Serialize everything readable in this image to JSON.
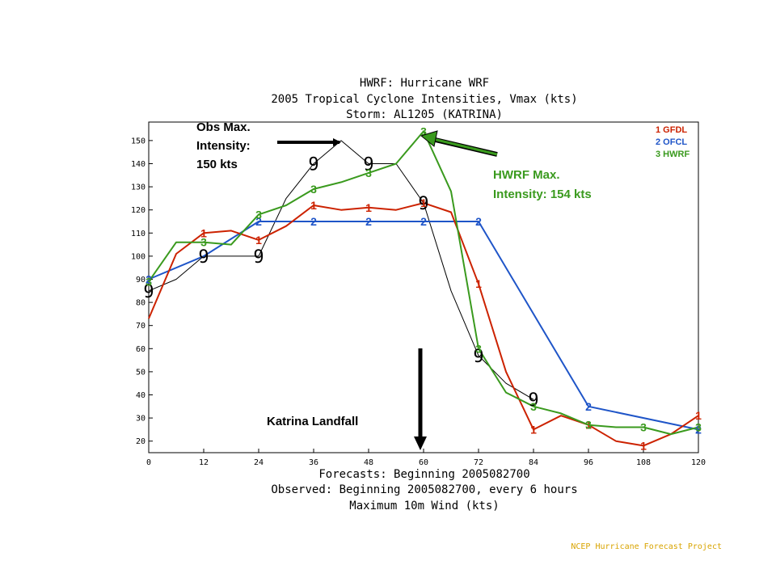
{
  "chart_data": {
    "type": "line",
    "title_lines": [
      "HWRF: Hurricane WRF",
      "2005 Tropical Cyclone Intensities, Vmax (kts)",
      "Storm: AL1205  (KATRINA)"
    ],
    "xlabel_lines": [
      "Forecasts: Beginning 2005082700",
      "Observed: Beginning 2005082700, every 6 hours",
      "Maximum 10m Wind (kts)"
    ],
    "xlim": [
      0,
      120
    ],
    "ylim": [
      15,
      158
    ],
    "x_ticks": [
      0,
      12,
      24,
      36,
      48,
      60,
      72,
      84,
      96,
      108,
      120
    ],
    "y_ticks": [
      20,
      30,
      40,
      50,
      60,
      70,
      80,
      90,
      100,
      110,
      120,
      130,
      140,
      150
    ],
    "series": [
      {
        "name": "GFDL",
        "legend_label": "1 GFDL",
        "marker": "1",
        "color": "#cc2200",
        "points": [
          [
            0,
            73
          ],
          [
            6,
            101
          ],
          [
            12,
            110
          ],
          [
            18,
            111
          ],
          [
            24,
            107
          ],
          [
            30,
            113
          ],
          [
            36,
            122
          ],
          [
            42,
            120
          ],
          [
            48,
            121
          ],
          [
            54,
            120
          ],
          [
            60,
            123
          ],
          [
            66,
            119
          ],
          [
            72,
            88
          ],
          [
            78,
            50
          ],
          [
            84,
            25
          ],
          [
            90,
            31
          ],
          [
            96,
            27
          ],
          [
            102,
            20
          ],
          [
            108,
            18
          ],
          [
            114,
            23
          ],
          [
            120,
            31
          ]
        ],
        "marker_points": [
          [
            12,
            110
          ],
          [
            24,
            107
          ],
          [
            36,
            122
          ],
          [
            48,
            121
          ],
          [
            60,
            123
          ],
          [
            72,
            88
          ],
          [
            84,
            25
          ],
          [
            96,
            27
          ],
          [
            108,
            18
          ],
          [
            120,
            31
          ]
        ]
      },
      {
        "name": "OFCL",
        "legend_label": "2 OFCL",
        "marker": "2",
        "color": "#1f55c8",
        "points": [
          [
            0,
            90
          ],
          [
            12,
            100
          ],
          [
            24,
            115
          ],
          [
            36,
            115
          ],
          [
            48,
            115
          ],
          [
            60,
            115
          ],
          [
            72,
            115
          ],
          [
            96,
            35
          ],
          [
            120,
            25
          ]
        ],
        "marker_points": [
          [
            0,
            90
          ],
          [
            24,
            115
          ],
          [
            36,
            115
          ],
          [
            48,
            115
          ],
          [
            60,
            115
          ],
          [
            72,
            115
          ],
          [
            96,
            35
          ],
          [
            120,
            25
          ]
        ]
      },
      {
        "name": "HWRF",
        "legend_label": "3 HWRF",
        "marker": "3",
        "color": "#3a9a1e",
        "points": [
          [
            0,
            89
          ],
          [
            6,
            106
          ],
          [
            12,
            106
          ],
          [
            18,
            105
          ],
          [
            24,
            118
          ],
          [
            30,
            122
          ],
          [
            36,
            129
          ],
          [
            42,
            132
          ],
          [
            48,
            136
          ],
          [
            54,
            140
          ],
          [
            60,
            154
          ],
          [
            66,
            128
          ],
          [
            72,
            60
          ],
          [
            78,
            41
          ],
          [
            84,
            35
          ],
          [
            90,
            32
          ],
          [
            96,
            27
          ],
          [
            102,
            26
          ],
          [
            108,
            26
          ],
          [
            114,
            23
          ],
          [
            120,
            26
          ]
        ],
        "marker_points": [
          [
            0,
            89
          ],
          [
            12,
            106
          ],
          [
            24,
            118
          ],
          [
            36,
            129
          ],
          [
            48,
            136
          ],
          [
            60,
            154
          ],
          [
            72,
            60
          ],
          [
            84,
            35
          ],
          [
            96,
            27
          ],
          [
            108,
            26
          ],
          [
            120,
            26
          ]
        ]
      },
      {
        "name": "Observed",
        "marker": "9",
        "color": "#000000",
        "points": [
          [
            0,
            85
          ],
          [
            6,
            90
          ],
          [
            12,
            100
          ],
          [
            18,
            100
          ],
          [
            24,
            100
          ],
          [
            30,
            125
          ],
          [
            36,
            140
          ],
          [
            42,
            150
          ],
          [
            48,
            140
          ],
          [
            54,
            140
          ],
          [
            60,
            123
          ],
          [
            66,
            85
          ],
          [
            72,
            57
          ],
          [
            78,
            45
          ],
          [
            84,
            38
          ]
        ],
        "marker_points": [
          [
            0,
            85
          ],
          [
            12,
            100
          ],
          [
            24,
            100
          ],
          [
            36,
            140
          ],
          [
            48,
            140
          ],
          [
            60,
            123
          ],
          [
            72,
            57
          ],
          [
            84,
            38
          ]
        ]
      }
    ],
    "annotations": {
      "obs_max": [
        "Obs Max.",
        "Intensity:",
        "150 kts"
      ],
      "hwrf_max": [
        "HWRF Max.",
        "Intensity: 154 kts"
      ],
      "landfall": "Katrina Landfall"
    },
    "footer": "NCEP Hurricane Forecast Project",
    "legend_position": "top-right",
    "grid": false
  }
}
